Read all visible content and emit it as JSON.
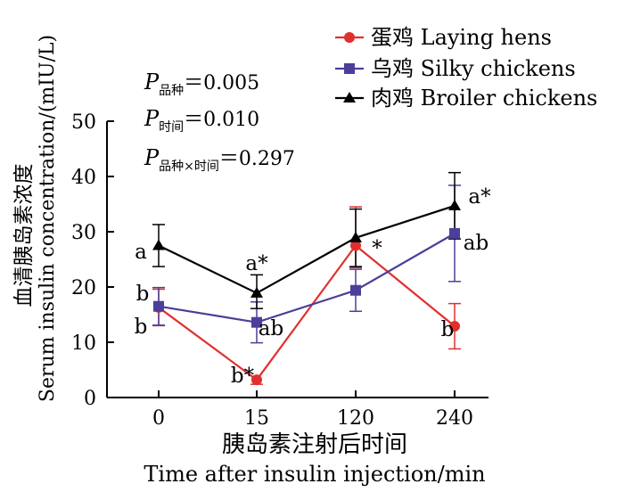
{
  "chart_data": {
    "type": "line",
    "x": [
      "0",
      "15",
      "120",
      "240"
    ],
    "xlabel_cn": "胰岛素注射后时间",
    "xlabel_en": "Time after insulin injection/min",
    "ylabel_cn": "血清胰岛素浓度",
    "ylabel_en": "Serum insulin concentration/(mIU/L)",
    "ylim": [
      0,
      50
    ],
    "yticks": [
      "0",
      "10",
      "20",
      "30",
      "40",
      "50"
    ],
    "legend_position": "top-right",
    "series": [
      {
        "name": "蛋鸡 Laying hens",
        "color": "#e0302e",
        "marker": "circle",
        "values": [
          16.3,
          3.2,
          27.5,
          12.9
        ],
        "err_low": [
          3.3,
          0.8,
          4.0,
          4.1
        ],
        "err_high": [
          3.3,
          0.0,
          7.0,
          4.1
        ],
        "labels": [
          "b",
          "b*",
          "*",
          "b"
        ]
      },
      {
        "name": "乌鸡 Silky chickens",
        "color": "#4a3f9a",
        "marker": "square",
        "values": [
          16.5,
          13.6,
          19.4,
          29.7
        ],
        "err_low": [
          3.4,
          3.7,
          3.8,
          8.7
        ],
        "err_high": [
          3.4,
          3.7,
          3.8,
          8.7
        ],
        "labels": [
          "b",
          "ab",
          "",
          "ab"
        ]
      },
      {
        "name": "肉鸡 Broiler chickens",
        "color": "#000000",
        "marker": "triangle",
        "values": [
          27.5,
          18.9,
          28.9,
          34.7
        ],
        "err_low": [
          3.8,
          2.8,
          5.2,
          6.0
        ],
        "err_high": [
          3.8,
          3.3,
          5.2,
          6.0
        ],
        "labels": [
          "a",
          "a*",
          "",
          "a*"
        ]
      }
    ],
    "p_values": [
      {
        "symbol": "P",
        "sub": "品种",
        "value": "＝0.005"
      },
      {
        "symbol": "P",
        "sub": "时间",
        "value": "＝0.010"
      },
      {
        "symbol": "P",
        "sub": "品种×时间",
        "value": "＝0.297"
      }
    ]
  }
}
